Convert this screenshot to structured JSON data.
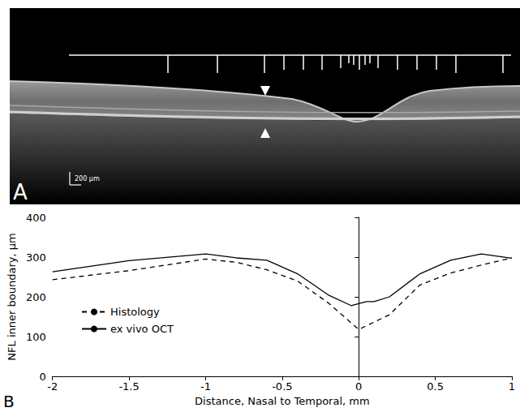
{
  "image_panel": {
    "letter": "A",
    "scale_bar": "200 µm"
  },
  "chart_data": {
    "type": "line",
    "panel": "B",
    "x_label": "Distance, Nasal to Temporal, mm",
    "y_label": "NFL inner boundary, µm",
    "xlim": [
      -2,
      1
    ],
    "xticks": [
      -2,
      -1.5,
      -1,
      -0.5,
      0,
      0.5,
      1
    ],
    "ylim": [
      0,
      400
    ],
    "yticks": [
      0,
      100,
      200,
      300,
      400
    ],
    "grid": false,
    "legend": "lower left",
    "series": [
      {
        "name": "Histology",
        "color": "#000000",
        "line_style": "dashed",
        "x": [
          -2,
          -1.5,
          -1,
          -0.8,
          -0.6,
          -0.4,
          -0.2,
          0,
          0.2,
          0.4,
          0.6,
          0.8,
          1
        ],
        "values": [
          243,
          266,
          295,
          287,
          268,
          240,
          185,
          118,
          155,
          230,
          260,
          280,
          298
        ]
      },
      {
        "name": "ex vivo OCT",
        "color": "#000000",
        "line_style": "solid",
        "x": [
          -2,
          -1.5,
          -1,
          -0.8,
          -0.6,
          -0.4,
          -0.2,
          -0.05,
          0.05,
          0.1,
          0.2,
          0.4,
          0.6,
          0.8,
          1
        ],
        "values": [
          263,
          291,
          308,
          298,
          292,
          258,
          205,
          178,
          188,
          188,
          200,
          258,
          292,
          308,
          297
        ]
      }
    ]
  }
}
